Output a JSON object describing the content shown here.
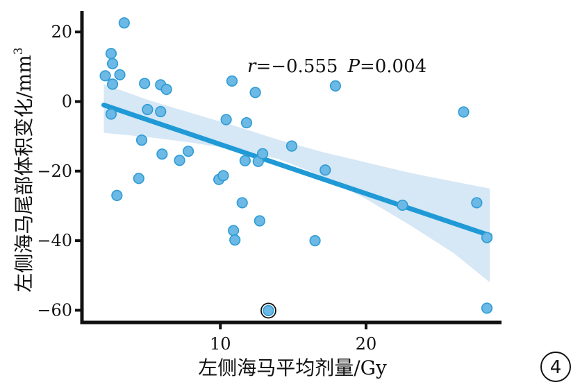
{
  "chart_data": {
    "type": "scatter",
    "xlabel": "左侧海马平均剂量/Gy",
    "ylabel": "左侧海马尾部体积变化/mm",
    "ylabel_superscript": "3",
    "annotation": {
      "r_symbol": "r",
      "r_value": "=−0.555",
      "p_symbol": "P",
      "p_value": "=0.004"
    },
    "panel_label": "4",
    "xlim": [
      0.5,
      29.3
    ],
    "ylim": [
      -63.5,
      26
    ],
    "x_ticks": [
      {
        "value": 10,
        "label": "10"
      },
      {
        "value": 20,
        "label": "20"
      }
    ],
    "y_ticks": [
      {
        "value": 20,
        "label": "20"
      },
      {
        "value": 0,
        "label": "0"
      },
      {
        "value": -20,
        "label": "−20"
      },
      {
        "value": -40,
        "label": "−40"
      },
      {
        "value": -60,
        "label": "−60"
      }
    ],
    "grid": false,
    "colors": {
      "point_fill": "#6bb9e4",
      "point_stroke": "#2e9bd6",
      "line": "#1f9ad6",
      "band": "#cfe3f3",
      "axis": "#111111"
    },
    "regression": {
      "x": [
        2,
        28.5
      ],
      "y": [
        -1,
        -38.5
      ]
    },
    "confidence_band": {
      "x": [
        2,
        5,
        8,
        11,
        14,
        17,
        20,
        23,
        26,
        28.5
      ],
      "upper": [
        5,
        0.5,
        -3.3,
        -7,
        -11,
        -14.5,
        -17.5,
        -20.5,
        -23,
        -25
      ],
      "lower": [
        -9,
        -10.2,
        -11.8,
        -13.8,
        -16.5,
        -21.5,
        -28,
        -35.5,
        -43.5,
        -52
      ]
    },
    "points": [
      {
        "x": 2.1,
        "y": 7.4
      },
      {
        "x": 2.5,
        "y": 13.8
      },
      {
        "x": 2.6,
        "y": 10.9
      },
      {
        "x": 2.6,
        "y": 5.0
      },
      {
        "x": 2.5,
        "y": -3.6
      },
      {
        "x": 3.1,
        "y": 7.7
      },
      {
        "x": 3.4,
        "y": 22.6
      },
      {
        "x": 2.9,
        "y": -27.0
      },
      {
        "x": 4.4,
        "y": -22.1
      },
      {
        "x": 4.6,
        "y": -11.1
      },
      {
        "x": 4.8,
        "y": 5.2
      },
      {
        "x": 5.0,
        "y": -2.3
      },
      {
        "x": 5.9,
        "y": 4.8
      },
      {
        "x": 5.9,
        "y": -2.9
      },
      {
        "x": 6.0,
        "y": -15.1
      },
      {
        "x": 6.3,
        "y": 3.5
      },
      {
        "x": 7.2,
        "y": -16.9
      },
      {
        "x": 7.8,
        "y": -14.3
      },
      {
        "x": 9.9,
        "y": -22.4
      },
      {
        "x": 10.2,
        "y": -21.3
      },
      {
        "x": 10.4,
        "y": -5.2
      },
      {
        "x": 10.8,
        "y": 5.9
      },
      {
        "x": 10.9,
        "y": -37.1
      },
      {
        "x": 11.0,
        "y": -39.8
      },
      {
        "x": 11.5,
        "y": -29.1
      },
      {
        "x": 11.7,
        "y": -17.0
      },
      {
        "x": 11.8,
        "y": -6.1
      },
      {
        "x": 12.4,
        "y": 2.6
      },
      {
        "x": 12.6,
        "y": -17.2
      },
      {
        "x": 12.7,
        "y": -34.3
      },
      {
        "x": 12.9,
        "y": -15.0
      },
      {
        "x": 13.3,
        "y": -60.1,
        "circled": true
      },
      {
        "x": 14.9,
        "y": -12.8
      },
      {
        "x": 16.5,
        "y": -40.0
      },
      {
        "x": 17.2,
        "y": -19.7
      },
      {
        "x": 17.9,
        "y": 4.5
      },
      {
        "x": 22.5,
        "y": -29.8
      },
      {
        "x": 26.7,
        "y": -3.0
      },
      {
        "x": 27.6,
        "y": -29.1
      },
      {
        "x": 28.3,
        "y": -39.1
      },
      {
        "x": 28.3,
        "y": -59.4
      }
    ]
  }
}
